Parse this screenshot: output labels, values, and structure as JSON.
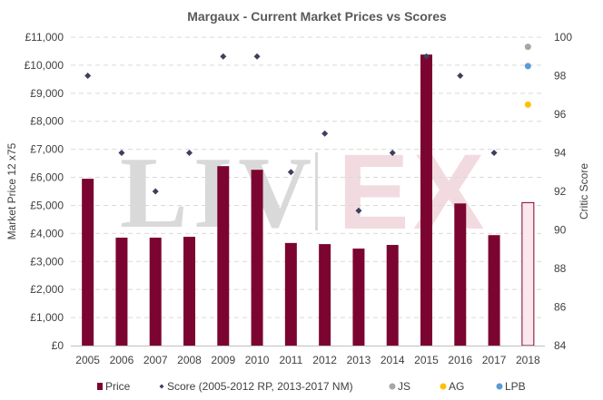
{
  "colors": {
    "price": "#7b0530",
    "price_last": "#fbe7ec",
    "score": "#3d3f5e",
    "js": "#a6a6a6",
    "ag": "#ffc000",
    "lpb": "#5b9bd5",
    "grid": "#d9d9d9"
  },
  "watermark": {
    "left": "LIV",
    "right": "EX"
  },
  "chart_data": {
    "type": "bar",
    "title": "Margaux - Current Market Prices vs Scores",
    "ylabel": "Market Price 12 x75",
    "y2label": "Critic Score",
    "ylim": [
      0,
      11000
    ],
    "y2lim": [
      84,
      100
    ],
    "grid": true,
    "legend_position": "bottom",
    "categories": [
      "2005",
      "2006",
      "2007",
      "2008",
      "2009",
      "2010",
      "2011",
      "2012",
      "2013",
      "2014",
      "2015",
      "2016",
      "2017",
      "2018"
    ],
    "y_ticks": [
      "£0",
      "£1,000",
      "£2,000",
      "£3,000",
      "£4,000",
      "£5,000",
      "£6,000",
      "£7,000",
      "£8,000",
      "£9,000",
      "£10,000",
      "£11,000"
    ],
    "y2_ticks": [
      "84",
      "86",
      "88",
      "90",
      "92",
      "94",
      "96",
      "98",
      "100"
    ],
    "series": [
      {
        "name": "Price",
        "kind": "bar",
        "axis": "left",
        "values": [
          5950,
          3850,
          3850,
          3880,
          6400,
          6270,
          3660,
          3620,
          3460,
          3590,
          10380,
          5070,
          3940,
          5100
        ]
      },
      {
        "name": "Score (2005-2012 RP, 2013-2017 NM)",
        "kind": "diamond",
        "axis": "right",
        "values": [
          98,
          94,
          92,
          94,
          99,
          99,
          93,
          95,
          91,
          94,
          99,
          98,
          94,
          null
        ]
      },
      {
        "name": "JS",
        "kind": "dot",
        "axis": "right",
        "values": [
          null,
          null,
          null,
          null,
          null,
          null,
          null,
          null,
          null,
          null,
          null,
          null,
          null,
          99.5
        ]
      },
      {
        "name": "AG",
        "kind": "dot",
        "axis": "right",
        "values": [
          null,
          null,
          null,
          null,
          null,
          null,
          null,
          null,
          null,
          null,
          null,
          null,
          null,
          96.5
        ]
      },
      {
        "name": "LPB",
        "kind": "dot",
        "axis": "right",
        "values": [
          null,
          null,
          null,
          null,
          null,
          null,
          null,
          null,
          null,
          null,
          null,
          null,
          null,
          98.5
        ]
      }
    ]
  }
}
